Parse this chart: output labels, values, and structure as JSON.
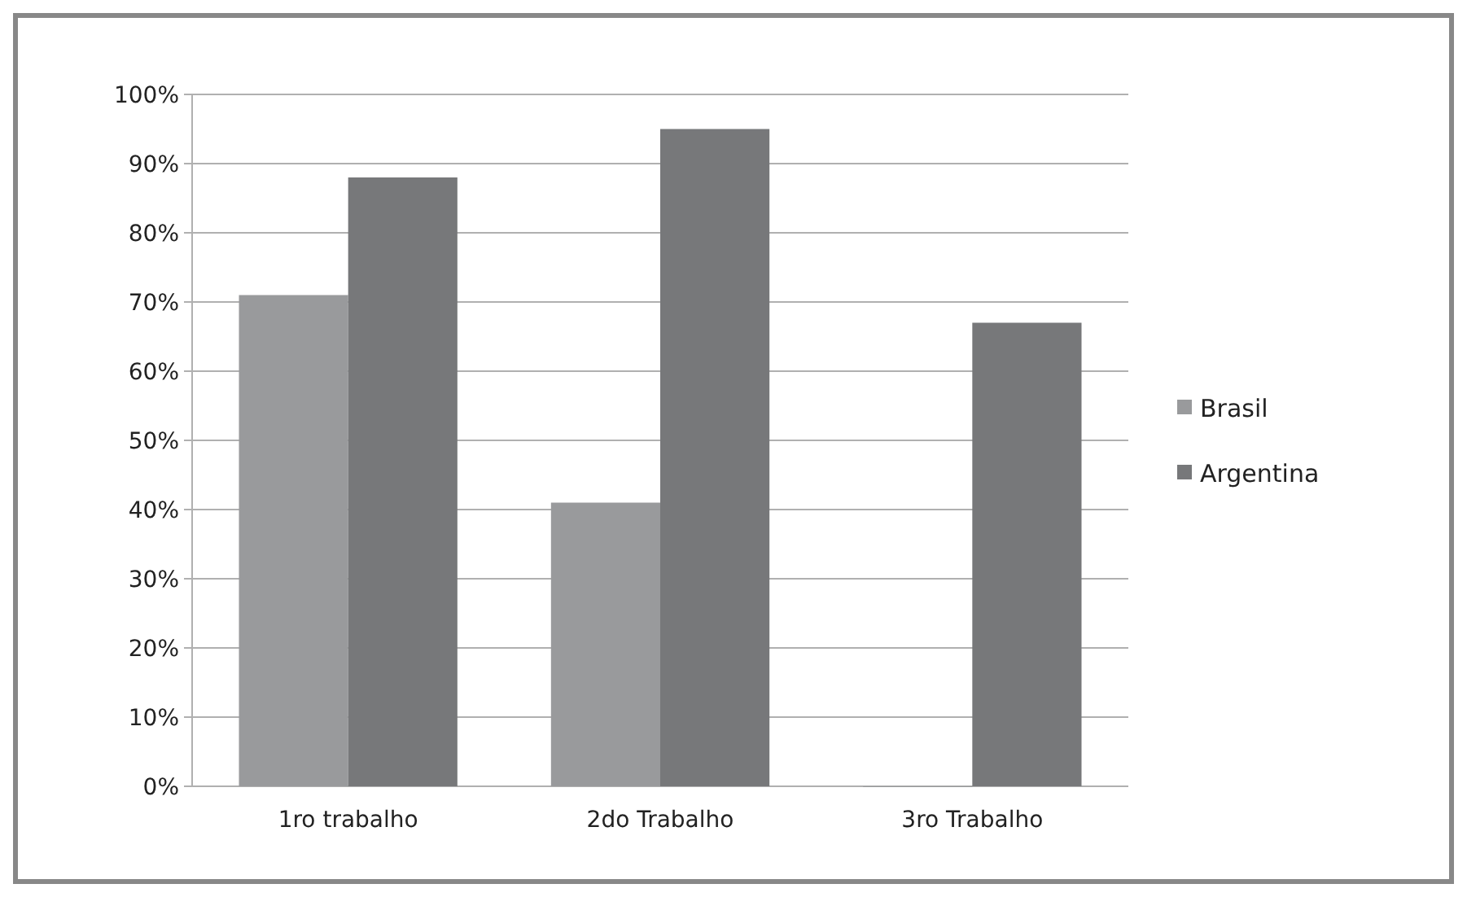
{
  "chart_data": {
    "type": "bar",
    "categories": [
      "1ro trabalho",
      "2do Trabalho",
      "3ro Trabalho"
    ],
    "series": [
      {
        "name": "Brasil",
        "color": "#999a9c",
        "values": [
          71,
          41,
          0
        ]
      },
      {
        "name": "Argentina",
        "color": "#77787a",
        "values": [
          88,
          95,
          67
        ]
      }
    ],
    "ylim": [
      0,
      100
    ],
    "yticks": [
      {
        "value": 0,
        "label": "0%"
      },
      {
        "value": 10,
        "label": "10%"
      },
      {
        "value": 20,
        "label": "20%"
      },
      {
        "value": 30,
        "label": "30%"
      },
      {
        "value": 40,
        "label": "40%"
      },
      {
        "value": 50,
        "label": "50%"
      },
      {
        "value": 60,
        "label": "60%"
      },
      {
        "value": 70,
        "label": "70%"
      },
      {
        "value": 80,
        "label": "80%"
      },
      {
        "value": 90,
        "label": "90%"
      },
      {
        "value": 100,
        "label": "100%"
      }
    ],
    "grid": "y",
    "legend": "right"
  }
}
